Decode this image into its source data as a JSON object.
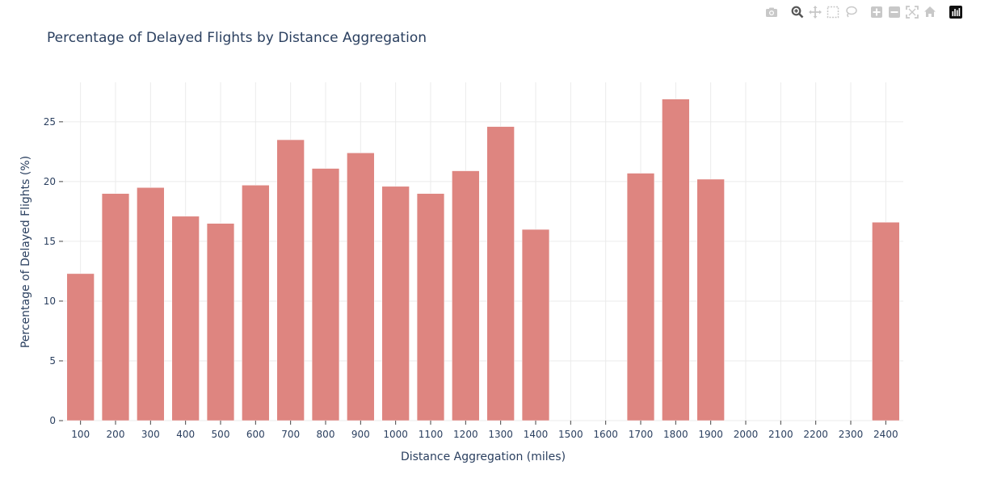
{
  "modebar": {
    "buttons": [
      {
        "name": "camera-icon",
        "group": 0
      },
      {
        "name": "zoom-icon",
        "group": 1,
        "active": true
      },
      {
        "name": "pan-icon",
        "group": 1
      },
      {
        "name": "box-select-icon",
        "group": 1
      },
      {
        "name": "lasso-select-icon",
        "group": 1
      },
      {
        "name": "zoom-in-icon",
        "group": 2
      },
      {
        "name": "zoom-out-icon",
        "group": 2
      },
      {
        "name": "autoscale-icon",
        "group": 2
      },
      {
        "name": "reset-axes-icon",
        "group": 2
      },
      {
        "name": "plotly-logo-icon",
        "group": 3
      }
    ]
  },
  "colors": {
    "bar": "#de8580",
    "grid": "#ebebeb",
    "text": "#2a3f5f",
    "modebar_icon": "#c8c8c8",
    "modebar_active": "#555555"
  },
  "chart_data": {
    "type": "bar",
    "title": "Percentage of Delayed Flights by Distance Aggregation",
    "xlabel": "Distance Aggregation (miles)",
    "ylabel": "Percentage of Delayed Flights (%)",
    "categories": [
      "100",
      "200",
      "300",
      "400",
      "500",
      "600",
      "700",
      "800",
      "900",
      "1000",
      "1100",
      "1200",
      "1300",
      "1400",
      "1500",
      "1600",
      "1700",
      "1800",
      "1900",
      "2000",
      "2100",
      "2200",
      "2300",
      "2400"
    ],
    "values": [
      12.3,
      19.0,
      19.5,
      17.1,
      16.5,
      19.7,
      23.5,
      21.1,
      22.4,
      19.6,
      19.0,
      20.9,
      24.6,
      16.0,
      null,
      null,
      20.7,
      26.9,
      20.2,
      null,
      null,
      null,
      null,
      16.6
    ],
    "yticks": [
      0,
      5,
      10,
      15,
      20,
      25
    ],
    "ylim": [
      0,
      28.3
    ],
    "grid": true,
    "legend": false
  }
}
